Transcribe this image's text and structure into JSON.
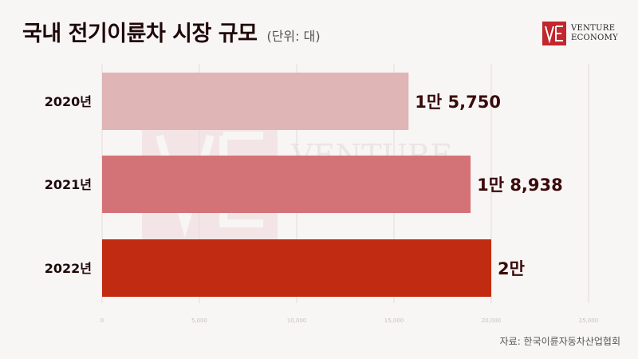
{
  "header": {
    "title": "국내 전기이륜차 시장 규모",
    "unit": "(단위: 대)"
  },
  "logo": {
    "line1": "VENTURE",
    "line2": "ECONOMY",
    "mark": "VE"
  },
  "source": "자료: 한국이륜자동차산업협회",
  "colors": {
    "background": "#f8f5f5",
    "bar_2020": "#dfb5b5",
    "bar_2021": "#d47377",
    "bar_2022": "#c12b12",
    "grid": "#e4dcdc"
  },
  "chart_data": {
    "type": "bar",
    "orientation": "horizontal",
    "categories": [
      "2020년",
      "2021년",
      "2022년"
    ],
    "values": [
      15750,
      18938,
      20000
    ],
    "data_labels": [
      "1만 5,750",
      "1만 8,938",
      "2만"
    ],
    "xlim": [
      0,
      25000
    ],
    "x_ticks": [
      0,
      5000,
      10000,
      15000,
      20000,
      25000
    ],
    "x_tick_labels": [
      "0",
      "5,000",
      "10,000",
      "15,000",
      "20,000",
      "25,000"
    ],
    "bar_colors": [
      "#dfb5b5",
      "#d47377",
      "#c12b12"
    ],
    "grid": true,
    "legend": false
  }
}
